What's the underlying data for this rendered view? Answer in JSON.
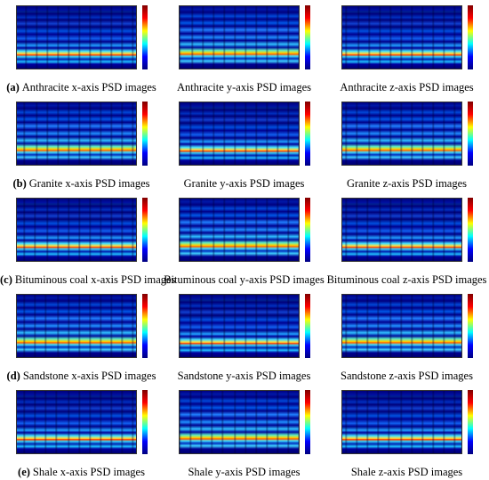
{
  "figure": {
    "rows": [
      {
        "label": "(a)",
        "captions": [
          "Anthracite x-axis PSD images",
          "Anthracite y-axis PSD images",
          "Anthracite z-axis PSD images"
        ]
      },
      {
        "label": "(b)",
        "captions": [
          "Granite x-axis PSD images",
          "Granite y-axis PSD images",
          "Granite z-axis PSD images"
        ]
      },
      {
        "label": "(c)",
        "captions": [
          "Bituminous coal x-axis PSD images",
          "Bituminous coal y-axis PSD images",
          "Bituminous coal z-axis PSD images"
        ]
      },
      {
        "label": "(d)",
        "captions": [
          "Sandstone x-axis PSD images",
          "Sandstone y-axis PSD images",
          "Sandstone z-axis PSD images"
        ]
      },
      {
        "label": "(e)",
        "captions": [
          "Shale x-axis PSD images",
          "Shale y-axis PSD images",
          "Shale z-axis PSD images"
        ]
      }
    ]
  }
}
